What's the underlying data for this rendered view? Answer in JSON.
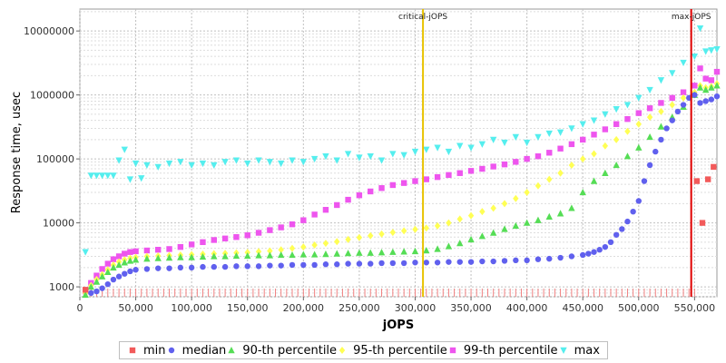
{
  "chart_data": {
    "type": "scatter",
    "xlabel": "jOPS",
    "ylabel": "Response time, usec",
    "xlim": [
      0,
      570000
    ],
    "ylim": [
      700,
      22000000
    ],
    "yscale": "log",
    "grid": true,
    "legend_position": "bottom",
    "x_ticks": [
      0,
      50000,
      100000,
      150000,
      200000,
      250000,
      300000,
      350000,
      400000,
      450000,
      500000,
      550000
    ],
    "x_tick_labels": [
      "0",
      "50,000",
      "100,000",
      "150,000",
      "200,000",
      "250,000",
      "300,000",
      "350,000",
      "400,000",
      "450,000",
      "500,000",
      "550,000"
    ],
    "y_ticks": [
      1000,
      10000,
      100000,
      1000000,
      10000000
    ],
    "y_tick_labels": [
      "1000",
      "10000",
      "100000",
      "1000000",
      "10000000"
    ],
    "vertical_markers": [
      {
        "label": "critical-jOPS",
        "x": 307000,
        "color": "#e8c200"
      },
      {
        "label": "max-jOPS",
        "x": 547000,
        "color": "#e00000"
      }
    ],
    "series": [
      {
        "name": "min",
        "color": "#f25a5a",
        "marker": "square",
        "x": [
          5000,
          552000,
          557000,
          562000,
          567000
        ],
        "values": [
          900,
          45000,
          10000,
          48000,
          75000
        ]
      },
      {
        "name": "median",
        "color": "#6060ee",
        "marker": "circle",
        "x": [
          5000,
          10000,
          15000,
          20000,
          25000,
          30000,
          35000,
          40000,
          45000,
          50000,
          60000,
          70000,
          80000,
          90000,
          100000,
          110000,
          120000,
          130000,
          140000,
          150000,
          160000,
          170000,
          180000,
          190000,
          200000,
          210000,
          220000,
          230000,
          240000,
          250000,
          260000,
          270000,
          280000,
          290000,
          300000,
          310000,
          320000,
          330000,
          340000,
          350000,
          360000,
          370000,
          380000,
          390000,
          400000,
          410000,
          420000,
          430000,
          440000,
          450000,
          455000,
          460000,
          465000,
          470000,
          475000,
          480000,
          485000,
          490000,
          495000,
          500000,
          505000,
          510000,
          515000,
          520000,
          525000,
          530000,
          535000,
          540000,
          545000,
          550000,
          555000,
          560000,
          565000,
          570000
        ],
        "values": [
          650,
          800,
          850,
          950,
          1100,
          1300,
          1450,
          1600,
          1750,
          1850,
          1900,
          1950,
          1950,
          2000,
          2000,
          2050,
          2050,
          2050,
          2100,
          2100,
          2100,
          2150,
          2150,
          2200,
          2200,
          2200,
          2250,
          2250,
          2300,
          2300,
          2300,
          2350,
          2350,
          2350,
          2400,
          2400,
          2400,
          2450,
          2450,
          2450,
          2500,
          2500,
          2550,
          2600,
          2600,
          2700,
          2750,
          2850,
          3000,
          3150,
          3300,
          3500,
          3800,
          4200,
          5000,
          6500,
          8000,
          10500,
          15000,
          22000,
          45000,
          80000,
          130000,
          200000,
          300000,
          400000,
          550000,
          700000,
          900000,
          1000000,
          750000,
          800000,
          850000,
          950000
        ]
      },
      {
        "name": "90-th percentile",
        "color": "#55dd55",
        "marker": "triangle-up",
        "x": [
          5000,
          10000,
          15000,
          20000,
          25000,
          30000,
          35000,
          40000,
          45000,
          50000,
          60000,
          70000,
          80000,
          90000,
          100000,
          110000,
          120000,
          130000,
          140000,
          150000,
          160000,
          170000,
          180000,
          190000,
          200000,
          210000,
          220000,
          230000,
          240000,
          250000,
          260000,
          270000,
          280000,
          290000,
          300000,
          310000,
          320000,
          330000,
          340000,
          350000,
          360000,
          370000,
          380000,
          390000,
          400000,
          410000,
          420000,
          430000,
          440000,
          450000,
          460000,
          470000,
          480000,
          490000,
          500000,
          510000,
          520000,
          530000,
          540000,
          550000,
          555000,
          560000,
          565000,
          570000
        ],
        "values": [
          750,
          1000,
          1200,
          1450,
          1700,
          2000,
          2200,
          2400,
          2550,
          2650,
          2750,
          2800,
          2850,
          2900,
          2900,
          2950,
          3000,
          3000,
          3050,
          3050,
          3100,
          3100,
          3150,
          3150,
          3200,
          3200,
          3250,
          3300,
          3350,
          3400,
          3400,
          3450,
          3500,
          3550,
          3600,
          3700,
          3900,
          4300,
          4800,
          5500,
          6200,
          7000,
          8000,
          9000,
          10000,
          11000,
          12500,
          14000,
          17000,
          30000,
          45000,
          60000,
          80000,
          110000,
          150000,
          220000,
          320000,
          450000,
          650000,
          1000000,
          1300000,
          1200000,
          1300000,
          1400000
        ]
      },
      {
        "name": "95-th percentile",
        "color": "#ffff55",
        "marker": "diamond",
        "x": [
          5000,
          10000,
          15000,
          20000,
          25000,
          30000,
          35000,
          40000,
          45000,
          50000,
          60000,
          70000,
          80000,
          90000,
          100000,
          110000,
          120000,
          130000,
          140000,
          150000,
          160000,
          170000,
          180000,
          190000,
          200000,
          210000,
          220000,
          230000,
          240000,
          250000,
          260000,
          270000,
          280000,
          290000,
          300000,
          310000,
          320000,
          330000,
          340000,
          350000,
          360000,
          370000,
          380000,
          390000,
          400000,
          410000,
          420000,
          430000,
          440000,
          450000,
          460000,
          470000,
          480000,
          490000,
          500000,
          510000,
          520000,
          530000,
          540000,
          550000,
          555000,
          560000,
          565000,
          570000
        ],
        "values": [
          800,
          1050,
          1300,
          1550,
          1850,
          2200,
          2450,
          2650,
          2800,
          2900,
          3000,
          3050,
          3100,
          3150,
          3200,
          3250,
          3300,
          3350,
          3400,
          3450,
          3550,
          3650,
          3800,
          4000,
          4200,
          4500,
          4800,
          5100,
          5500,
          5900,
          6300,
          6700,
          7100,
          7500,
          7900,
          8300,
          9000,
          10000,
          11500,
          13000,
          15000,
          17000,
          20000,
          24000,
          30000,
          38000,
          48000,
          60000,
          80000,
          100000,
          120000,
          160000,
          200000,
          270000,
          350000,
          450000,
          550000,
          700000,
          900000,
          1100000,
          1400000,
          1300000,
          1350000,
          1500000
        ]
      },
      {
        "name": "99-th percentile",
        "color": "#ee55ee",
        "marker": "square",
        "x": [
          5000,
          10000,
          15000,
          20000,
          25000,
          30000,
          35000,
          40000,
          45000,
          50000,
          60000,
          70000,
          80000,
          90000,
          100000,
          110000,
          120000,
          130000,
          140000,
          150000,
          160000,
          170000,
          180000,
          190000,
          200000,
          210000,
          220000,
          230000,
          240000,
          250000,
          260000,
          270000,
          280000,
          290000,
          300000,
          310000,
          320000,
          330000,
          340000,
          350000,
          360000,
          370000,
          380000,
          390000,
          400000,
          410000,
          420000,
          430000,
          440000,
          450000,
          460000,
          470000,
          480000,
          490000,
          500000,
          510000,
          520000,
          530000,
          540000,
          550000,
          555000,
          560000,
          565000,
          570000
        ],
        "values": [
          850,
          1150,
          1500,
          1900,
          2300,
          2700,
          3000,
          3300,
          3500,
          3600,
          3700,
          3800,
          3900,
          4200,
          4600,
          5000,
          5400,
          5700,
          6000,
          6400,
          7000,
          7700,
          8500,
          9500,
          11000,
          13500,
          16000,
          19000,
          23000,
          27000,
          31000,
          35000,
          39000,
          42000,
          45000,
          48000,
          52000,
          56000,
          60000,
          65000,
          70000,
          76000,
          82000,
          90000,
          100000,
          110000,
          125000,
          145000,
          170000,
          200000,
          240000,
          290000,
          350000,
          420000,
          520000,
          620000,
          750000,
          900000,
          1100000,
          1400000,
          2600000,
          1800000,
          1700000,
          2300000
        ]
      },
      {
        "name": "max",
        "color": "#55eeee",
        "marker": "triangle-down",
        "x": [
          5000,
          10000,
          15000,
          20000,
          25000,
          30000,
          35000,
          40000,
          45000,
          50000,
          55000,
          60000,
          70000,
          80000,
          90000,
          100000,
          110000,
          120000,
          130000,
          140000,
          150000,
          160000,
          170000,
          180000,
          190000,
          200000,
          210000,
          220000,
          230000,
          240000,
          250000,
          260000,
          270000,
          280000,
          290000,
          300000,
          310000,
          320000,
          330000,
          340000,
          350000,
          360000,
          370000,
          380000,
          390000,
          400000,
          410000,
          420000,
          430000,
          440000,
          450000,
          460000,
          470000,
          480000,
          490000,
          500000,
          510000,
          520000,
          530000,
          540000,
          550000,
          555000,
          560000,
          565000,
          570000
        ],
        "values": [
          3500,
          55000,
          55000,
          55000,
          55000,
          55000,
          95000,
          140000,
          48000,
          85000,
          50000,
          80000,
          75000,
          85000,
          90000,
          80000,
          85000,
          80000,
          90000,
          95000,
          85000,
          95000,
          90000,
          85000,
          95000,
          90000,
          100000,
          110000,
          95000,
          120000,
          105000,
          110000,
          95000,
          120000,
          115000,
          130000,
          140000,
          150000,
          130000,
          160000,
          150000,
          170000,
          200000,
          180000,
          220000,
          180000,
          220000,
          250000,
          260000,
          300000,
          350000,
          400000,
          500000,
          600000,
          700000,
          900000,
          1200000,
          1700000,
          2200000,
          3200000,
          4000000,
          11000000,
          4800000,
          5000000,
          5200000
        ]
      }
    ]
  }
}
